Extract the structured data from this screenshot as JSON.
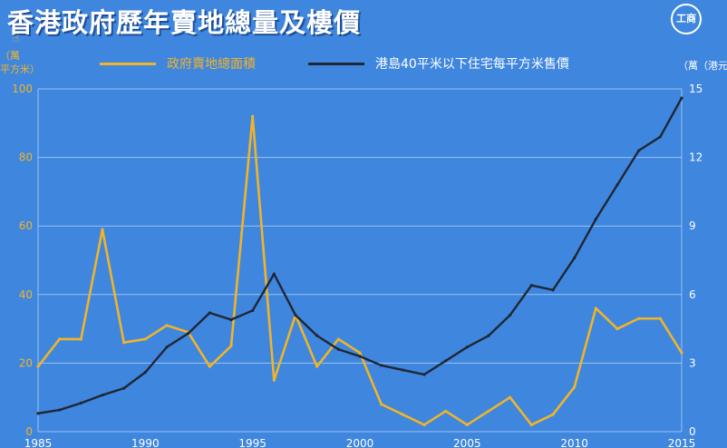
{
  "title": "香港政府歷年賣地總量及樓價",
  "logo_text": "工商",
  "cursor_icon": "hand-pointer-icon",
  "colors": {
    "background": "#3f86df",
    "gov_line": "#f0b429",
    "price_line": "#1f2633",
    "grid": "#9cc2ee"
  },
  "chart_data": {
    "type": "line",
    "ylabel_left": "（萬\n平方米）",
    "ylabel_right": "（萬（港元）",
    "grid": true,
    "legend_position": "top",
    "x_ticks": [
      1985,
      1990,
      1995,
      2000,
      2005,
      2010,
      2015
    ],
    "x_tick_labels": [
      "1985",
      "1990",
      "1995",
      "2000",
      "2005",
      "2010",
      "2015"
    ],
    "xlim": [
      1985,
      2015
    ],
    "y_left_ticks": [
      0,
      20,
      40,
      60,
      80,
      100
    ],
    "ylim_left": [
      0,
      100
    ],
    "y_right_ticks": [
      0,
      3,
      6,
      9,
      12,
      15
    ],
    "ylim_right": [
      0,
      15
    ],
    "x": [
      1985,
      1986,
      1987,
      1988,
      1989,
      1990,
      1991,
      1992,
      1993,
      1994,
      1995,
      1996,
      1997,
      1998,
      1999,
      2000,
      2001,
      2002,
      2003,
      2004,
      2005,
      2006,
      2007,
      2008,
      2009,
      2010,
      2011,
      2012,
      2013,
      2014,
      2015
    ],
    "series": [
      {
        "name": "政府賣地總面積",
        "axis": "left",
        "values": [
          19,
          27,
          27,
          59,
          26,
          27,
          31,
          29,
          19,
          25,
          92,
          15,
          34,
          19,
          27,
          23,
          8,
          5,
          2,
          6,
          2,
          6,
          10,
          2,
          5,
          13,
          36,
          30,
          33,
          33,
          23
        ]
      },
      {
        "name": "港島40平米以下住宅每平方米售價",
        "axis": "right",
        "values": [
          0.8,
          0.95,
          1.25,
          1.6,
          1.9,
          2.6,
          3.7,
          4.3,
          5.2,
          4.9,
          5.3,
          6.9,
          5.1,
          4.2,
          3.6,
          3.3,
          2.9,
          2.7,
          2.5,
          3.1,
          3.7,
          4.2,
          5.1,
          6.4,
          6.2,
          7.6,
          9.3,
          10.8,
          12.3,
          12.9,
          14.6
        ]
      }
    ]
  }
}
